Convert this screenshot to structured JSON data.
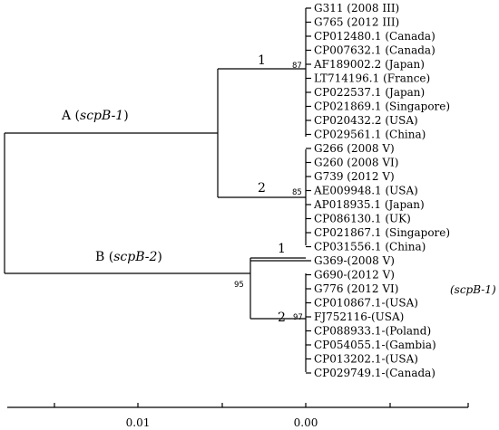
{
  "clades": {
    "A": {
      "prefix": "A (",
      "italic": "scpB-1",
      "suffix": ")"
    },
    "B": {
      "prefix": "B (",
      "italic": "scpB-2",
      "suffix": ")"
    }
  },
  "subclade_numbers": {
    "a1": "1",
    "a2": "2",
    "b1": "1",
    "b2": "2"
  },
  "bootstrap": {
    "a1": "87",
    "a2": "85",
    "b": "95",
    "b2": "97"
  },
  "annotation": "(scpB-1)",
  "scale_ticks": [
    "0.01",
    "0.00"
  ],
  "leaves": [
    "G311 (2008 III)",
    "G765 (2012 III)",
    "CP012480.1 (Canada)",
    "CP007632.1 (Canada)",
    "AF189002.2 (Japan)",
    "LT714196.1 (France)",
    "CP022537.1 (Japan)",
    "CP021869.1 (Singapore)",
    "CP020432.2 (USA)",
    "CP029561.1 (China)",
    "G266 (2008 V)",
    "G260 (2008 VI)",
    "G739 (2012 V)",
    "AE009948.1 (USA)",
    "AP018935.1 (Japan)",
    "CP086130.1 (UK)",
    "CP021867.1 (Singapore)",
    "CP031556.1 (China)",
    "G369-(2008 V)",
    "G690-(2012 V)",
    "G776 (2012 VI)",
    "CP010867.1-(USA)",
    "FJ752116-(USA)",
    "CP088933.1-(Poland)",
    "CP054055.1-(Gambia)",
    "CP013202.1-(USA)",
    "CP029749.1-(Canada)"
  ]
}
